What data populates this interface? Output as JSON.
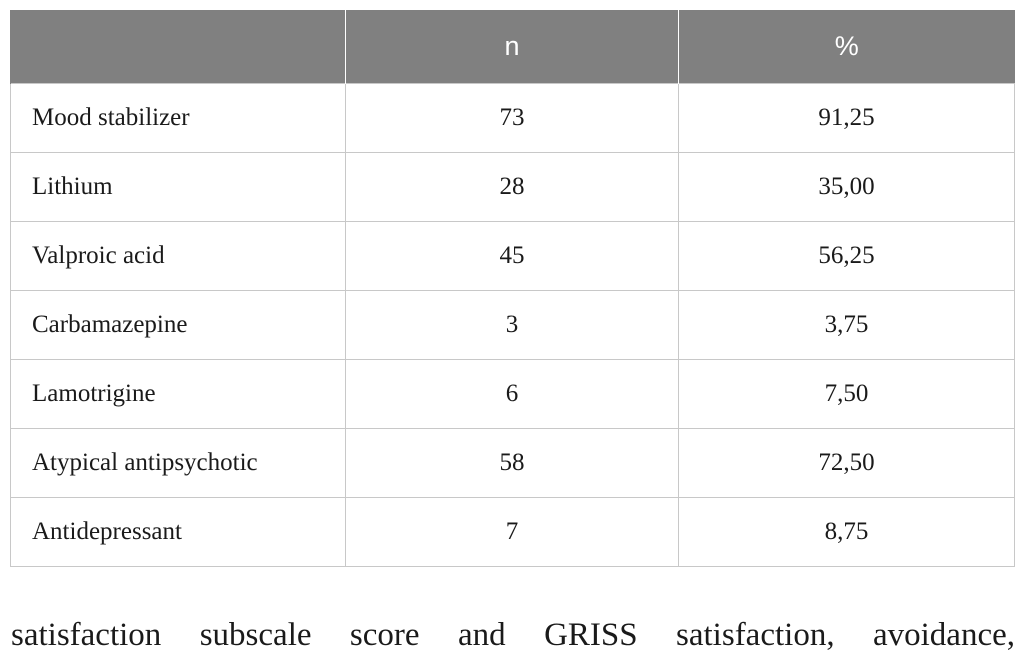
{
  "table": {
    "headers": [
      "",
      "n",
      "%"
    ],
    "rows": [
      {
        "label": "Mood stabilizer",
        "n": "73",
        "pct": "91,25"
      },
      {
        "label": "Lithium",
        "n": "28",
        "pct": "35,00"
      },
      {
        "label": "Valproic acid",
        "n": "45",
        "pct": "56,25"
      },
      {
        "label": "Carbamazepine",
        "n": "3",
        "pct": "3,75"
      },
      {
        "label": "Lamotrigine",
        "n": "6",
        "pct": "7,50"
      },
      {
        "label": "Atypical antipsychotic",
        "n": "58",
        "pct": "72,50"
      },
      {
        "label": "Antidepressant",
        "n": "7",
        "pct": "8,75"
      }
    ]
  },
  "body_text": "satisfaction subscale score and GRISS satisfaction, avoidance,"
}
